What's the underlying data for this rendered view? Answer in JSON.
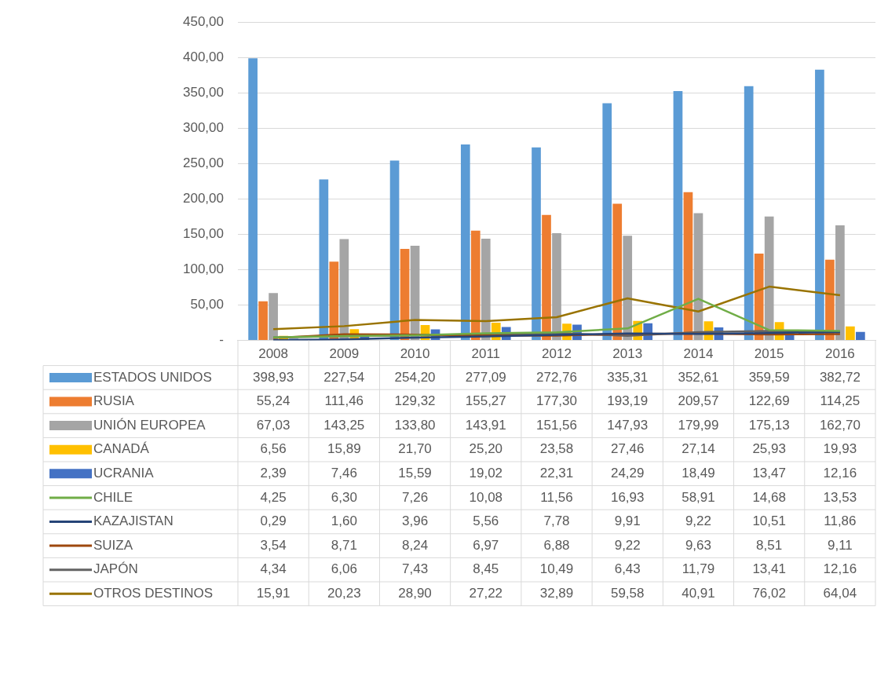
{
  "chart_data": {
    "type": "bar",
    "categories": [
      "2008",
      "2009",
      "2010",
      "2011",
      "2012",
      "2013",
      "2014",
      "2015",
      "2016"
    ],
    "series": [
      {
        "name": "ESTADOS UNIDOS",
        "color": "#5b9bd5",
        "values": [
          398.93,
          227.54,
          254.2,
          277.09,
          272.76,
          335.31,
          352.61,
          359.59,
          382.72
        ],
        "value_labels": [
          "398,93",
          "227,54",
          "254,20",
          "277,09",
          "272,76",
          "335,31",
          "352,61",
          "359,59",
          "382,72"
        ]
      },
      {
        "name": "RUSIA",
        "color": "#ed7d31",
        "values": [
          55.24,
          111.46,
          129.32,
          155.27,
          177.3,
          193.19,
          209.57,
          122.69,
          114.25
        ],
        "value_labels": [
          "55,24",
          "111,46",
          "129,32",
          "155,27",
          "177,30",
          "193,19",
          "209,57",
          "122,69",
          "114,25"
        ]
      },
      {
        "name": "UNIÓN EUROPEA",
        "color": "#a5a5a5",
        "values": [
          67.03,
          143.25,
          133.8,
          143.91,
          151.56,
          147.93,
          179.99,
          175.13,
          162.7
        ],
        "value_labels": [
          "67,03",
          "143,25",
          "133,80",
          "143,91",
          "151,56",
          "147,93",
          "179,99",
          "175,13",
          "162,70"
        ]
      },
      {
        "name": "CANADÁ",
        "color": "#ffc000",
        "values": [
          6.56,
          15.89,
          21.7,
          25.2,
          23.58,
          27.46,
          27.14,
          25.93,
          19.93
        ],
        "value_labels": [
          "6,56",
          "15,89",
          "21,70",
          "25,20",
          "23,58",
          "27,46",
          "27,14",
          "25,93",
          "19,93"
        ]
      },
      {
        "name": "UCRANIA",
        "color": "#4472c4",
        "values": [
          2.39,
          7.46,
          15.59,
          19.02,
          22.31,
          24.29,
          18.49,
          13.47,
          12.16
        ],
        "value_labels": [
          "2,39",
          "7,46",
          "15,59",
          "19,02",
          "22,31",
          "24,29",
          "18,49",
          "13,47",
          "12,16"
        ]
      },
      {
        "name": "CHILE",
        "type": "line",
        "color": "#70ad47",
        "values": [
          4.25,
          6.3,
          7.26,
          10.08,
          11.56,
          16.93,
          58.91,
          14.68,
          13.53
        ],
        "value_labels": [
          "4,25",
          "6,30",
          "7,26",
          "10,08",
          "11,56",
          "16,93",
          "58,91",
          "14,68",
          "13,53"
        ]
      },
      {
        "name": "KAZAJISTAN",
        "type": "line",
        "color": "#264478",
        "values": [
          0.29,
          1.6,
          3.96,
          5.56,
          7.78,
          9.91,
          9.22,
          10.51,
          11.86
        ],
        "value_labels": [
          "0,29",
          "1,60",
          "3,96",
          "5,56",
          "7,78",
          "9,91",
          "9,22",
          "10,51",
          "11,86"
        ]
      },
      {
        "name": "SUIZA",
        "type": "line",
        "color": "#9e480e",
        "values": [
          3.54,
          8.71,
          8.24,
          6.97,
          6.88,
          9.22,
          9.63,
          8.51,
          9.11
        ],
        "value_labels": [
          "3,54",
          "8,71",
          "8,24",
          "6,97",
          "6,88",
          "9,22",
          "9,63",
          "8,51",
          "9,11"
        ]
      },
      {
        "name": "JAPÓN",
        "type": "line",
        "color": "#636363",
        "values": [
          4.34,
          6.06,
          7.43,
          8.45,
          10.49,
          6.43,
          11.79,
          13.41,
          12.16
        ],
        "value_labels": [
          "4,34",
          "6,06",
          "7,43",
          "8,45",
          "10,49",
          "6,43",
          "11,79",
          "13,41",
          "12,16"
        ]
      },
      {
        "name": "OTROS DESTINOS",
        "type": "line",
        "color": "#997300",
        "values": [
          15.91,
          20.23,
          28.9,
          27.22,
          32.89,
          59.58,
          40.91,
          76.02,
          64.04
        ],
        "value_labels": [
          "15,91",
          "20,23",
          "28,90",
          "27,22",
          "32,89",
          "59,58",
          "40,91",
          "76,02",
          "64,04"
        ]
      }
    ],
    "ylim": [
      0,
      450
    ],
    "yticks": [
      {
        "value": 0,
        "label": "-"
      },
      {
        "value": 50,
        "label": "50,00"
      },
      {
        "value": 100,
        "label": "100,00"
      },
      {
        "value": 150,
        "label": "150,00"
      },
      {
        "value": 200,
        "label": "200,00"
      },
      {
        "value": 250,
        "label": "250,00"
      },
      {
        "value": 300,
        "label": "300,00"
      },
      {
        "value": 350,
        "label": "350,00"
      },
      {
        "value": 400,
        "label": "400,00"
      },
      {
        "value": 450,
        "label": "450,00"
      }
    ],
    "grid": "y",
    "legend": "bottom",
    "marker": "none"
  }
}
